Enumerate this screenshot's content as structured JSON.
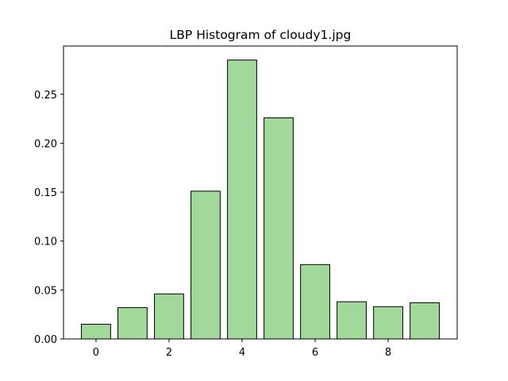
{
  "chart_data": {
    "type": "bar",
    "title": "LBP Histogram of cloudy1.jpg",
    "xlabel": "",
    "ylabel": "",
    "x": [
      0,
      1,
      2,
      3,
      4,
      5,
      6,
      7,
      8,
      9
    ],
    "values": [
      0.015,
      0.032,
      0.046,
      0.151,
      0.285,
      0.226,
      0.076,
      0.038,
      0.033,
      0.037
    ],
    "xlim": [
      -0.89,
      9.89
    ],
    "ylim": [
      0,
      0.2993
    ],
    "xticks": [
      "0",
      "2",
      "4",
      "6",
      "8"
    ],
    "yticks": [
      "0.00",
      "0.05",
      "0.10",
      "0.15",
      "0.20",
      "0.25"
    ],
    "bar_color": "#a1d99b",
    "edge_color": "#000000",
    "grid": false,
    "legend": "none"
  }
}
